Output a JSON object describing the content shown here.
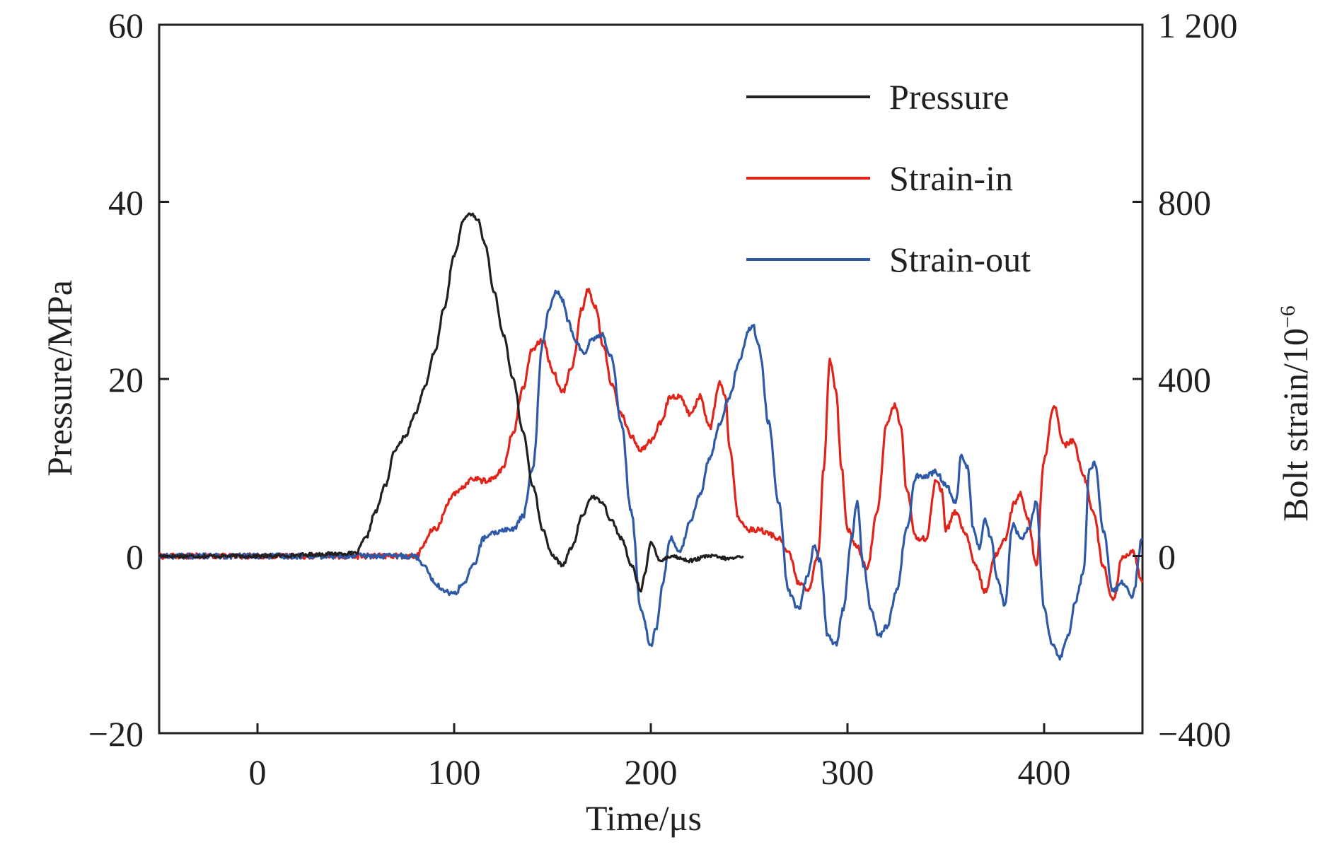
{
  "chart_data": {
    "type": "line",
    "title": "",
    "xlabel": "Time/μs",
    "ylabel": "Pressure/MPa",
    "y2label": "Bolt strain/10",
    "y2label_exponent": "−6",
    "xlim": [
      -50,
      450
    ],
    "ylim": [
      -20,
      60
    ],
    "y2lim": [
      -400,
      1200
    ],
    "x_ticks": [
      0,
      100,
      200,
      300,
      400
    ],
    "x_tick_labels": [
      "0",
      "100",
      "200",
      "300",
      "400"
    ],
    "y_ticks": [
      -20,
      0,
      20,
      40,
      60
    ],
    "y_tick_labels": [
      "−20",
      "0",
      "20",
      "40",
      "60"
    ],
    "y2_ticks": [
      -400,
      0,
      400,
      800,
      1200
    ],
    "y2_tick_labels": [
      "−400",
      "0",
      "400",
      "800",
      "1 200"
    ],
    "grid": false,
    "legend_position": "top-right",
    "series": [
      {
        "name": "Pressure",
        "axis": "left",
        "color": "#231f20",
        "x": [
          -50,
          0,
          50,
          55,
          60,
          65,
          70,
          75,
          80,
          85,
          90,
          95,
          100,
          105,
          108,
          112,
          116,
          120,
          125,
          130,
          135,
          140,
          145,
          150,
          155,
          160,
          165,
          170,
          175,
          180,
          185,
          190,
          195,
          197,
          200,
          205,
          210,
          220,
          230,
          240,
          247
        ],
        "y": [
          0,
          0,
          0.3,
          2,
          5,
          8,
          12,
          13.5,
          16,
          19,
          23,
          28,
          34,
          38,
          38.7,
          38,
          35,
          30,
          25,
          20,
          14,
          8,
          3,
          0,
          -1,
          1,
          4.5,
          6.7,
          6.2,
          4,
          2,
          -1,
          -3.8,
          -2,
          1.5,
          -0.5,
          0,
          -0.5,
          0,
          -0.3,
          0
        ],
        "noise": 0.2
      },
      {
        "name": "Strain-in",
        "axis": "right",
        "color": "#e2231a",
        "x": [
          -50,
          0,
          50,
          80,
          90,
          100,
          110,
          115,
          120,
          125,
          130,
          135,
          140,
          145,
          150,
          155,
          160,
          165,
          168,
          172,
          176,
          180,
          185,
          190,
          195,
          200,
          205,
          210,
          215,
          220,
          225,
          230,
          235,
          238,
          240,
          245,
          250,
          255,
          260,
          265,
          270,
          275,
          280,
          285,
          288,
          291,
          294,
          297,
          300,
          305,
          310,
          315,
          320,
          324,
          327,
          330,
          335,
          340,
          345,
          348,
          350,
          355,
          360,
          365,
          370,
          375,
          380,
          385,
          388,
          392,
          396,
          400,
          405,
          410,
          415,
          420,
          425,
          430,
          435,
          440,
          445,
          450
        ],
        "y": [
          0,
          0,
          0,
          0,
          60,
          140,
          175,
          170,
          175,
          200,
          280,
          380,
          470,
          490,
          420,
          370,
          430,
          560,
          600,
          560,
          470,
          390,
          320,
          270,
          240,
          260,
          300,
          360,
          360,
          320,
          360,
          290,
          390,
          360,
          240,
          80,
          60,
          60,
          50,
          40,
          10,
          -60,
          -80,
          0,
          200,
          440,
          380,
          200,
          60,
          20,
          -30,
          100,
          300,
          340,
          300,
          150,
          40,
          40,
          170,
          150,
          60,
          100,
          50,
          -20,
          -80,
          0,
          40,
          120,
          140,
          80,
          -20,
          220,
          340,
          250,
          260,
          180,
          100,
          -20,
          -100,
          0,
          10,
          -60
        ],
        "noise": 6
      },
      {
        "name": "Strain-out",
        "axis": "right",
        "color": "#2e59a8",
        "x": [
          -50,
          0,
          50,
          80,
          85,
          90,
          95,
          100,
          105,
          110,
          115,
          120,
          125,
          130,
          135,
          140,
          145,
          148,
          152,
          155,
          158,
          162,
          166,
          170,
          175,
          180,
          185,
          190,
          195,
          200,
          203,
          206,
          210,
          215,
          220,
          225,
          230,
          235,
          240,
          245,
          250,
          252,
          255,
          260,
          265,
          270,
          275,
          280,
          283,
          286,
          290,
          294,
          298,
          302,
          305,
          308,
          312,
          316,
          320,
          325,
          330,
          335,
          340,
          345,
          350,
          355,
          358,
          361,
          364,
          367,
          370,
          373,
          376,
          380,
          384,
          388,
          392,
          396,
          400,
          404,
          408,
          412,
          416,
          420,
          423,
          426,
          430,
          435,
          440,
          445,
          450
        ],
        "y": [
          0,
          0,
          0,
          0,
          -20,
          -60,
          -80,
          -85,
          -60,
          -20,
          40,
          50,
          60,
          60,
          90,
          200,
          480,
          560,
          600,
          580,
          530,
          480,
          460,
          490,
          500,
          450,
          300,
          100,
          -120,
          -200,
          -160,
          -60,
          40,
          10,
          80,
          140,
          220,
          300,
          360,
          440,
          510,
          520,
          470,
          300,
          120,
          -80,
          -120,
          -40,
          20,
          -10,
          -180,
          -200,
          -120,
          40,
          120,
          -20,
          -120,
          -180,
          -160,
          -80,
          60,
          180,
          180,
          190,
          160,
          120,
          230,
          200,
          60,
          20,
          80,
          40,
          -50,
          -110,
          70,
          40,
          60,
          120,
          -120,
          -200,
          -230,
          -180,
          -100,
          -40,
          200,
          210,
          60,
          -80,
          -60,
          -90,
          40
        ],
        "noise": 6
      }
    ]
  }
}
